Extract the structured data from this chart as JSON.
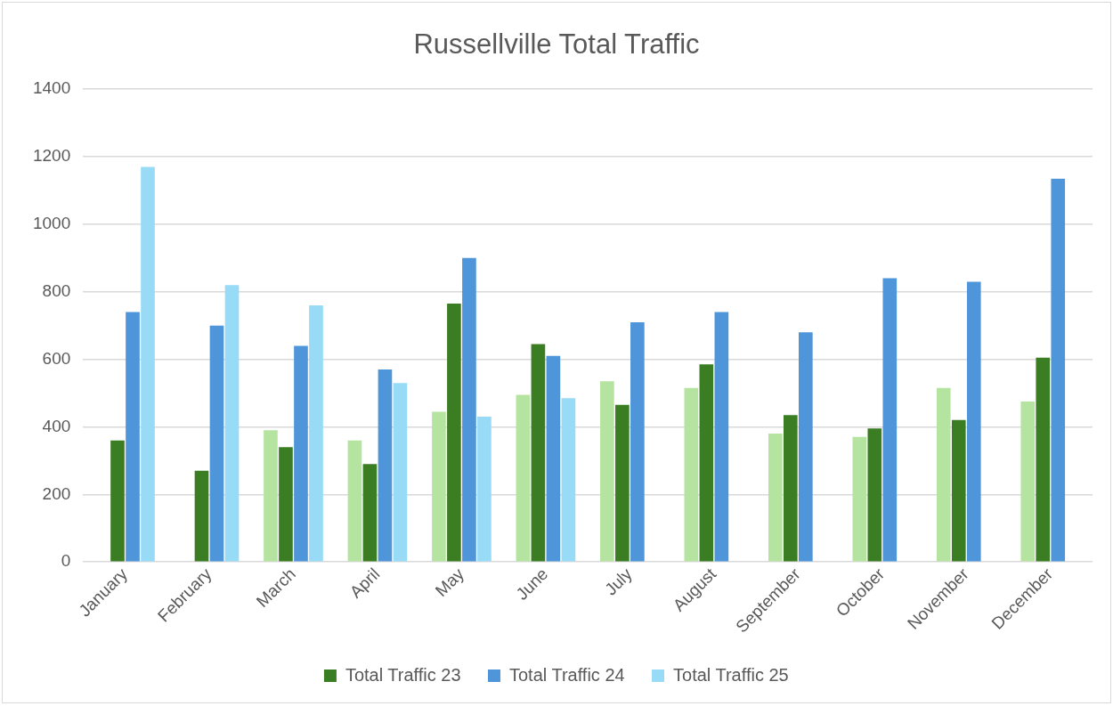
{
  "chart_data": {
    "type": "bar",
    "title": "Russellville Total Traffic",
    "categories": [
      "January",
      "February",
      "March",
      "April",
      "May",
      "June",
      "July",
      "August",
      "September",
      "October",
      "November",
      "December"
    ],
    "series": [
      {
        "color": "#b5e4a1",
        "values": [
          null,
          null,
          390,
          360,
          445,
          495,
          535,
          515,
          380,
          370,
          515,
          475
        ]
      },
      {
        "name": "Total Traffic 23",
        "color": "#3b7d23",
        "values": [
          360,
          270,
          340,
          290,
          765,
          645,
          465,
          585,
          435,
          395,
          420,
          605
        ]
      },
      {
        "name": "Total Traffic 24",
        "color": "#4e95d9",
        "values": [
          740,
          700,
          640,
          570,
          900,
          610,
          710,
          740,
          680,
          840,
          830,
          1135
        ]
      },
      {
        "name": "Total Traffic 25",
        "color": "#97dbf7",
        "values": [
          1170,
          820,
          760,
          530,
          430,
          485,
          null,
          null,
          null,
          null,
          null,
          null
        ]
      }
    ],
    "ylim": [
      0,
      1400
    ],
    "yticks": [
      0,
      200,
      400,
      600,
      800,
      1000,
      1200,
      1400
    ],
    "grid": "y",
    "legend": "bottom"
  }
}
